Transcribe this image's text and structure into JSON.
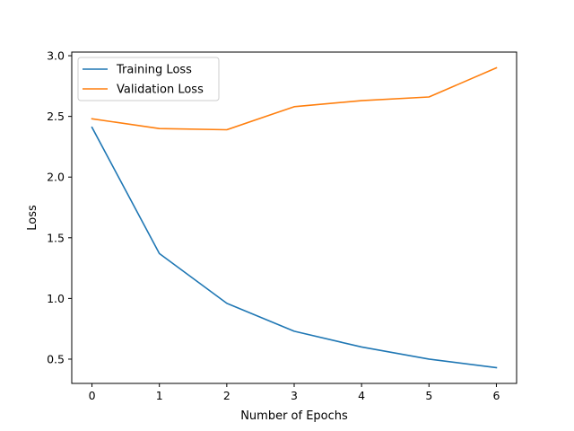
{
  "chart_data": {
    "type": "line",
    "xlabel": "Number of Epochs",
    "ylabel": "Loss",
    "x": [
      0,
      1,
      2,
      3,
      4,
      5,
      6
    ],
    "xlim": [
      -0.3,
      6.3
    ],
    "ylim": [
      0.3,
      3.03
    ],
    "xticks": [
      0,
      1,
      2,
      3,
      4,
      5,
      6
    ],
    "xtick_labels": [
      "0",
      "1",
      "2",
      "3",
      "4",
      "5",
      "6"
    ],
    "yticks": [
      0.5,
      1.0,
      1.5,
      2.0,
      2.5,
      3.0
    ],
    "ytick_labels": [
      "0.5",
      "1.0",
      "1.5",
      "2.0",
      "2.5",
      "3.0"
    ],
    "grid": false,
    "legend_position": "upper-left",
    "series": [
      {
        "name": "Training Loss",
        "color": "#1f77b4",
        "values": [
          2.41,
          1.37,
          0.96,
          0.73,
          0.6,
          0.5,
          0.43
        ]
      },
      {
        "name": "Validation Loss",
        "color": "#ff7f0e",
        "values": [
          2.48,
          2.4,
          2.39,
          2.58,
          2.63,
          2.66,
          2.9
        ]
      }
    ]
  }
}
